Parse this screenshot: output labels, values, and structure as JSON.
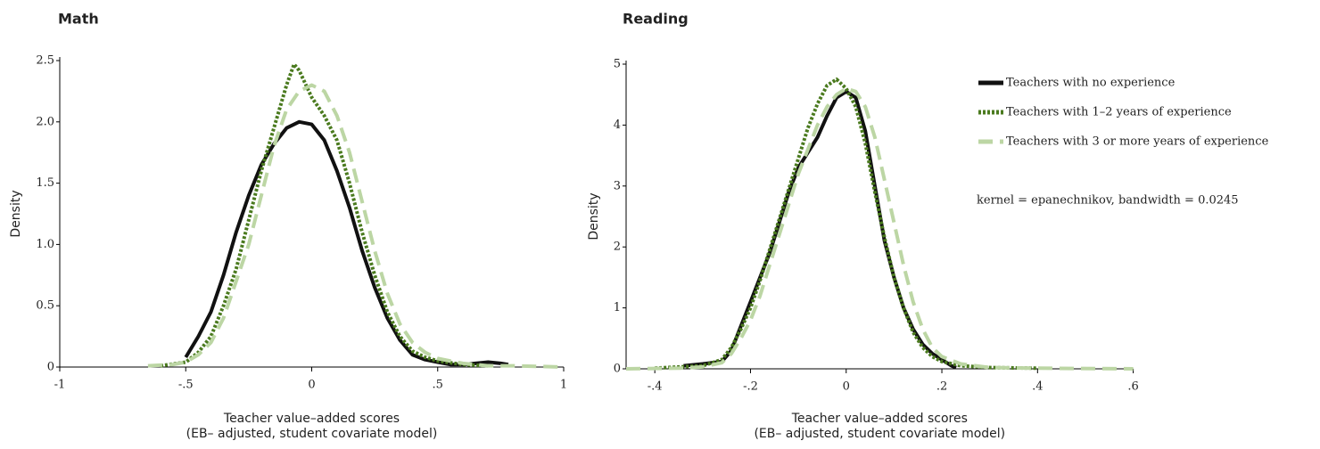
{
  "chart_data": [
    {
      "type": "line",
      "title": "Math",
      "ylabel": "Density",
      "xlabel": [
        "Teacher value–added scores",
        "(EB– adjusted, student covariate model)"
      ],
      "xlim": [
        -1,
        1
      ],
      "xticks": [
        -1,
        {
          "value": -0.5,
          "label": "-.5"
        },
        0,
        {
          "value": 0.5,
          "label": ".5"
        },
        1
      ],
      "ylim": [
        0,
        2.5
      ],
      "yticks": [
        0,
        0.5,
        {
          "value": 1,
          "label": "1.0"
        },
        1.5,
        {
          "value": 2,
          "label": "2.0"
        },
        2.5
      ],
      "series": [
        {
          "color": "#111111",
          "linestyle": "solid",
          "x": [
            -0.5,
            -0.45,
            -0.4,
            -0.35,
            -0.3,
            -0.25,
            -0.2,
            -0.15,
            -0.1,
            -0.05,
            0,
            0.05,
            0.1,
            0.15,
            0.2,
            0.25,
            0.3,
            0.35,
            0.4,
            0.45,
            0.5,
            0.55,
            0.6,
            0.65,
            0.7,
            0.75,
            0.78
          ],
          "values": [
            0.08,
            0.25,
            0.45,
            0.75,
            1.1,
            1.4,
            1.65,
            1.82,
            1.95,
            2.0,
            1.98,
            1.85,
            1.6,
            1.3,
            0.95,
            0.65,
            0.4,
            0.22,
            0.1,
            0.06,
            0.04,
            0.02,
            0.02,
            0.03,
            0.04,
            0.03,
            0.02
          ]
        },
        {
          "color": "#4a7a1e",
          "linestyle": "dotted",
          "x": [
            -0.6,
            -0.5,
            -0.45,
            -0.4,
            -0.35,
            -0.3,
            -0.25,
            -0.2,
            -0.15,
            -0.1,
            -0.07,
            -0.05,
            0,
            0.05,
            0.1,
            0.15,
            0.2,
            0.25,
            0.3,
            0.35,
            0.4,
            0.45,
            0.5,
            0.6,
            0.7
          ],
          "values": [
            0.01,
            0.04,
            0.12,
            0.25,
            0.5,
            0.8,
            1.2,
            1.6,
            1.95,
            2.3,
            2.47,
            2.42,
            2.2,
            2.05,
            1.85,
            1.5,
            1.1,
            0.75,
            0.45,
            0.25,
            0.13,
            0.08,
            0.05,
            0.02,
            0.01
          ]
        },
        {
          "color": "#bcd6a4",
          "linestyle": "dashed",
          "x": [
            -0.65,
            -0.55,
            -0.5,
            -0.45,
            -0.4,
            -0.35,
            -0.3,
            -0.25,
            -0.2,
            -0.15,
            -0.1,
            -0.05,
            0,
            0.05,
            0.1,
            0.15,
            0.2,
            0.25,
            0.3,
            0.35,
            0.4,
            0.45,
            0.5,
            0.6,
            0.7,
            0.8,
            1.0
          ],
          "values": [
            0.01,
            0.02,
            0.04,
            0.1,
            0.2,
            0.4,
            0.7,
            1.0,
            1.4,
            1.8,
            2.1,
            2.25,
            2.3,
            2.25,
            2.05,
            1.75,
            1.35,
            0.95,
            0.6,
            0.35,
            0.2,
            0.12,
            0.07,
            0.03,
            0.01,
            0.01,
            0
          ]
        }
      ]
    },
    {
      "type": "line",
      "title": "Reading",
      "ylabel": "Density",
      "xlabel": [
        "Teacher value–added scores",
        "(EB– adjusted, student covariate model)"
      ],
      "annotation": "kernel = epanechnikov, bandwidth = 0.0245",
      "xlim": [
        -0.46,
        0.6
      ],
      "xticks": [
        {
          "value": -0.4,
          "label": "-.4"
        },
        {
          "value": -0.2,
          "label": "-.2"
        },
        0,
        {
          "value": 0.2,
          "label": ".2"
        },
        {
          "value": 0.4,
          "label": ".4"
        },
        {
          "value": 0.6,
          "label": ".6"
        }
      ],
      "ylim": [
        0,
        5
      ],
      "yticks": [
        0,
        1,
        2,
        3,
        4,
        5
      ],
      "series": [
        {
          "name": "Teachers with no experience",
          "color": "#111111",
          "linestyle": "solid",
          "x": [
            -0.34,
            -0.3,
            -0.26,
            -0.24,
            -0.22,
            -0.2,
            -0.18,
            -0.16,
            -0.14,
            -0.12,
            -0.1,
            -0.08,
            -0.06,
            -0.04,
            -0.02,
            0,
            0.02,
            0.04,
            0.06,
            0.08,
            0.1,
            0.12,
            0.14,
            0.16,
            0.18,
            0.2,
            0.22,
            0.23
          ],
          "values": [
            0.05,
            0.08,
            0.12,
            0.3,
            0.7,
            1.1,
            1.5,
            1.9,
            2.4,
            2.9,
            3.3,
            3.55,
            3.8,
            4.15,
            4.45,
            4.55,
            4.45,
            3.9,
            3.0,
            2.1,
            1.5,
            1.0,
            0.65,
            0.4,
            0.25,
            0.15,
            0.05,
            0.02
          ]
        },
        {
          "name": "Teachers with 1–2 years of experience",
          "color": "#4a7a1e",
          "linestyle": "dotted",
          "x": [
            -0.4,
            -0.3,
            -0.26,
            -0.24,
            -0.22,
            -0.2,
            -0.18,
            -0.16,
            -0.14,
            -0.12,
            -0.1,
            -0.08,
            -0.06,
            -0.04,
            -0.02,
            0,
            0.02,
            0.04,
            0.06,
            0.08,
            0.1,
            0.12,
            0.14,
            0.16,
            0.18,
            0.2,
            0.24,
            0.3,
            0.4
          ],
          "values": [
            0.01,
            0.05,
            0.15,
            0.35,
            0.65,
            1.0,
            1.45,
            1.95,
            2.45,
            2.95,
            3.45,
            3.95,
            4.35,
            4.65,
            4.75,
            4.6,
            4.3,
            3.7,
            2.9,
            2.15,
            1.5,
            1.0,
            0.6,
            0.35,
            0.2,
            0.12,
            0.05,
            0.02,
            0.01
          ]
        },
        {
          "name": "Teachers with 3 or more years of experience",
          "color": "#bcd6a4",
          "linestyle": "dashed",
          "x": [
            -0.46,
            -0.35,
            -0.3,
            -0.26,
            -0.24,
            -0.22,
            -0.2,
            -0.18,
            -0.16,
            -0.14,
            -0.12,
            -0.1,
            -0.08,
            -0.06,
            -0.04,
            -0.02,
            0,
            0.02,
            0.04,
            0.06,
            0.08,
            0.1,
            0.12,
            0.14,
            0.16,
            0.18,
            0.2,
            0.24,
            0.3,
            0.4,
            0.6
          ],
          "values": [
            0,
            0.01,
            0.03,
            0.1,
            0.25,
            0.5,
            0.8,
            1.2,
            1.7,
            2.2,
            2.7,
            3.2,
            3.6,
            4.0,
            4.3,
            4.5,
            4.6,
            4.55,
            4.3,
            3.8,
            3.1,
            2.4,
            1.7,
            1.1,
            0.65,
            0.35,
            0.2,
            0.08,
            0.02,
            0.01,
            0
          ]
        }
      ]
    }
  ]
}
